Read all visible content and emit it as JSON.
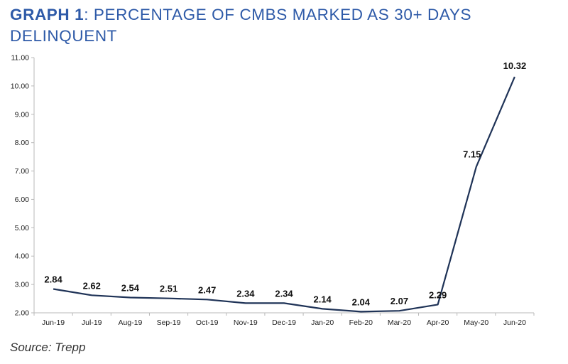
{
  "title": {
    "lead": "GRAPH 1",
    "rest": ": PERCENTAGE OF CMBS MARKED AS 30+ DAYS DELINQUENT"
  },
  "source": "Source: Trepp",
  "colors": {
    "title": "#2e5aa8",
    "line": "#1f3357",
    "axis": "#b8b8b8",
    "text": "#222222"
  },
  "chart_data": {
    "type": "line",
    "title": "GRAPH 1: PERCENTAGE OF CMBS MARKED AS 30+ DAYS DELINQUENT",
    "categories": [
      "Jun-19",
      "Jul-19",
      "Aug-19",
      "Sep-19",
      "Oct-19",
      "Nov-19",
      "Dec-19",
      "Jan-20",
      "Feb-20",
      "Mar-20",
      "Apr-20",
      "May-20",
      "Jun-20"
    ],
    "series": [
      {
        "name": "30+ days delinquent (%)",
        "values": [
          2.84,
          2.62,
          2.54,
          2.51,
          2.47,
          2.34,
          2.34,
          2.14,
          2.04,
          2.07,
          2.29,
          7.15,
          10.32
        ],
        "labels": [
          "2.84",
          "2.62",
          "2.54",
          "2.51",
          "2.47",
          "2.34",
          "2.34",
          "2.14",
          "2.04",
          "2.07",
          "2.29",
          "7.15",
          "10.32"
        ]
      }
    ],
    "yticks": [
      "2.00",
      "3.00",
      "4.00",
      "5.00",
      "6.00",
      "7.00",
      "8.00",
      "9.00",
      "10.00",
      "11.00"
    ],
    "ylim": [
      2,
      11
    ],
    "xlabel": "",
    "ylabel": "",
    "grid": false,
    "legend": "none"
  }
}
